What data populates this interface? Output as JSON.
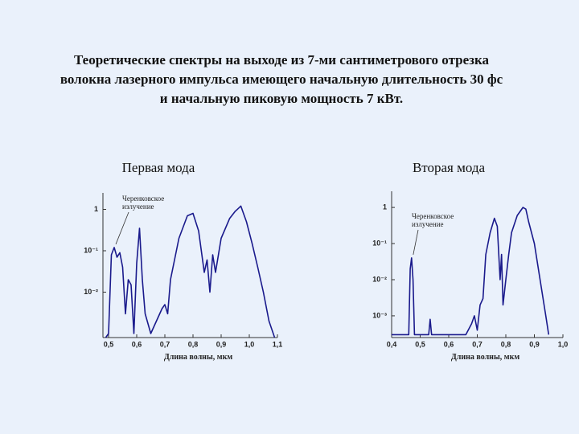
{
  "header": {
    "title_lines": [
      "Теоретические спектры на выходе из 7-ми сантиметрового отрезка",
      "волокна лазерного импульса имеющего начальную длительность 30 фс",
      "и начальную пиковую мощность 7 кВт."
    ]
  },
  "chart_data": [
    {
      "type": "line",
      "title": "Первая мода",
      "x_label": "Длина волны, мкм",
      "annotation": [
        "Черенковское",
        "излучение"
      ],
      "log_y": true,
      "color": "#1a1a8c",
      "xlim": [
        0.48,
        1.1
      ],
      "xticks": [
        {
          "value": 0.5,
          "label": "0,5"
        },
        {
          "value": 0.6,
          "label": "0,6"
        },
        {
          "value": 0.7,
          "label": "0,7"
        },
        {
          "value": 0.8,
          "label": "0,8"
        },
        {
          "value": 0.9,
          "label": "0,9"
        },
        {
          "value": 1.0,
          "label": "1,0"
        },
        {
          "value": 1.1,
          "label": "1,1"
        }
      ],
      "ylim": [
        0.0008,
        2.5
      ],
      "yticks": [
        {
          "value": 0.01,
          "label": "10⁻²"
        },
        {
          "value": 0.1,
          "label": "10⁻¹"
        },
        1
      ],
      "x": [
        0.49,
        0.5,
        0.51,
        0.52,
        0.53,
        0.54,
        0.55,
        0.56,
        0.57,
        0.58,
        0.59,
        0.6,
        0.61,
        0.62,
        0.63,
        0.65,
        0.67,
        0.69,
        0.7,
        0.71,
        0.72,
        0.75,
        0.78,
        0.8,
        0.82,
        0.84,
        0.85,
        0.86,
        0.87,
        0.88,
        0.9,
        0.93,
        0.95,
        0.97,
        0.99,
        1.01,
        1.03,
        1.05,
        1.07,
        1.09
      ],
      "values": [
        0.0008,
        0.001,
        0.08,
        0.12,
        0.07,
        0.09,
        0.04,
        0.003,
        0.02,
        0.015,
        0.001,
        0.05,
        0.35,
        0.02,
        0.003,
        0.001,
        0.002,
        0.004,
        0.005,
        0.003,
        0.02,
        0.2,
        0.7,
        0.8,
        0.3,
        0.03,
        0.06,
        0.01,
        0.08,
        0.03,
        0.2,
        0.6,
        0.9,
        1.2,
        0.5,
        0.15,
        0.04,
        0.01,
        0.002,
        0.0008
      ]
    },
    {
      "type": "line",
      "title": "Вторая мода",
      "x_label": "Длина волны, мкм",
      "annotation": [
        "Черенковское",
        "излучение"
      ],
      "log_y": true,
      "color": "#1a1a8c",
      "xlim": [
        0.4,
        1.0
      ],
      "xticks": [
        {
          "value": 0.4,
          "label": "0,4"
        },
        {
          "value": 0.5,
          "label": "0,5"
        },
        {
          "value": 0.6,
          "label": "0,6"
        },
        {
          "value": 0.7,
          "label": "0,7"
        },
        {
          "value": 0.8,
          "label": "0,8"
        },
        {
          "value": 0.9,
          "label": "0,9"
        },
        {
          "value": 1.0,
          "label": "1,0"
        }
      ],
      "ylim": [
        0.00025,
        2.8
      ],
      "yticks": [
        {
          "value": 0.001,
          "label": "10⁻³"
        },
        {
          "value": 0.01,
          "label": "10⁻²"
        },
        {
          "value": 0.1,
          "label": "10⁻¹"
        },
        1
      ],
      "x": [
        0.4,
        0.46,
        0.465,
        0.47,
        0.475,
        0.48,
        0.53,
        0.535,
        0.54,
        0.66,
        0.68,
        0.69,
        0.7,
        0.71,
        0.72,
        0.73,
        0.745,
        0.76,
        0.77,
        0.78,
        0.785,
        0.79,
        0.8,
        0.81,
        0.82,
        0.84,
        0.86,
        0.87,
        0.88,
        0.9,
        0.92,
        0.94,
        0.95
      ],
      "values": [
        0.0003,
        0.0003,
        0.02,
        0.04,
        0.01,
        0.0003,
        0.0003,
        0.0008,
        0.0003,
        0.0003,
        0.0006,
        0.001,
        0.0004,
        0.002,
        0.003,
        0.05,
        0.2,
        0.5,
        0.3,
        0.01,
        0.05,
        0.002,
        0.01,
        0.05,
        0.2,
        0.6,
        1.0,
        0.9,
        0.4,
        0.1,
        0.01,
        0.001,
        0.0003
      ]
    }
  ]
}
